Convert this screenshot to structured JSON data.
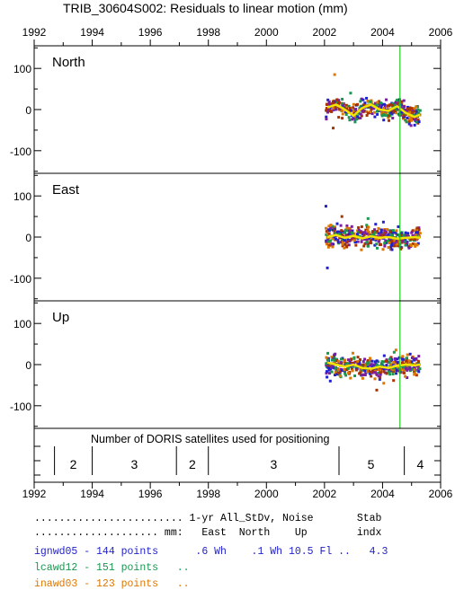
{
  "chart_data": {
    "type": "scatter",
    "title": "TRIB_30604S002: Residuals to linear motion (mm)",
    "x_ticks": [
      1992,
      1994,
      1996,
      1998,
      2000,
      2002,
      2004,
      2006
    ],
    "xlim": [
      1992,
      2006
    ],
    "vertical_line_x": 2004.6,
    "panels": [
      {
        "label": "North",
        "ylim": [
          -155,
          155
        ],
        "y_ticks": [
          100,
          0,
          -100
        ],
        "y_tick_labels": [
          "100",
          "0",
          "-100"
        ],
        "trend": [
          [
            2002.1,
            5
          ],
          [
            2002.4,
            12
          ],
          [
            2002.7,
            0
          ],
          [
            2003.0,
            -15
          ],
          [
            2003.3,
            4
          ],
          [
            2003.6,
            12
          ],
          [
            2003.9,
            0
          ],
          [
            2004.2,
            -3
          ],
          [
            2004.5,
            8
          ],
          [
            2004.8,
            -8
          ],
          [
            2005.1,
            -18
          ],
          [
            2005.3,
            -12
          ]
        ],
        "outliers": [
          [
            2002.35,
            85,
            "#dd7700"
          ],
          [
            2002.3,
            -45,
            "#aa3300"
          ],
          [
            2002.9,
            40,
            "#1a9850"
          ]
        ]
      },
      {
        "label": "East",
        "ylim": [
          -155,
          155
        ],
        "y_ticks": [
          100,
          0,
          -100
        ],
        "y_tick_labels": [
          "100",
          "0",
          "-100"
        ],
        "trend": [
          [
            2002.1,
            0
          ],
          [
            2002.4,
            5
          ],
          [
            2002.7,
            -2
          ],
          [
            2003.0,
            3
          ],
          [
            2003.3,
            -3
          ],
          [
            2003.6,
            2
          ],
          [
            2003.9,
            -2
          ],
          [
            2004.2,
            0
          ],
          [
            2004.5,
            -4
          ],
          [
            2004.8,
            -2
          ],
          [
            2005.1,
            0
          ],
          [
            2005.3,
            -2
          ]
        ],
        "outliers": [
          [
            2002.05,
            75,
            "#2222cc"
          ],
          [
            2002.1,
            -75,
            "#2222cc"
          ],
          [
            2002.6,
            50,
            "#aa3300"
          ],
          [
            2003.5,
            45,
            "#1a9850"
          ]
        ]
      },
      {
        "label": "Up",
        "ylim": [
          -155,
          155
        ],
        "y_ticks": [
          100,
          0,
          -100
        ],
        "y_tick_labels": [
          "100",
          "0",
          "-100"
        ],
        "trend": [
          [
            2002.1,
            5
          ],
          [
            2002.4,
            0
          ],
          [
            2002.7,
            -5
          ],
          [
            2003.0,
            0
          ],
          [
            2003.3,
            -8
          ],
          [
            2003.6,
            -10
          ],
          [
            2003.9,
            -5
          ],
          [
            2004.2,
            -8
          ],
          [
            2004.5,
            -3
          ],
          [
            2004.8,
            0
          ],
          [
            2005.1,
            -2
          ],
          [
            2005.3,
            0
          ]
        ],
        "outliers": [
          [
            2003.8,
            -62,
            "#aa3300"
          ],
          [
            2002.2,
            -40,
            "#2222cc"
          ],
          [
            2004.4,
            30,
            "#1a9850"
          ]
        ]
      }
    ],
    "series": [
      {
        "name": "ignwd05",
        "color": "#2222cc",
        "points": 144
      },
      {
        "name": "lcawd12",
        "color": "#1a9850",
        "points": 151
      },
      {
        "name": "inawd03",
        "color": "#dd7700",
        "points": 123
      }
    ],
    "secondary_colors": [
      "#7b1fa2",
      "#aa3300"
    ],
    "trend_color": "#f2e600",
    "satellites": {
      "label": "Number of DORIS satellites used for positioning",
      "boundaries": [
        1992.7,
        1994.0,
        1996.9,
        1998.0,
        2002.5,
        2004.75
      ],
      "segments": [
        {
          "x": 1993.35,
          "count": "2"
        },
        {
          "x": 1995.45,
          "count": "3"
        },
        {
          "x": 1997.45,
          "count": "2"
        },
        {
          "x": 2000.25,
          "count": "3"
        },
        {
          "x": 2003.6,
          "count": "5"
        },
        {
          "x": 2005.3,
          "count": "4"
        }
      ]
    }
  },
  "table": {
    "header1": "........................ 1-yr All_StDv, Noise       Stab",
    "header2": ".................... mm:   East  North    Up        indx",
    "rows": [
      {
        "text": "ignwd05 - 144 points      .6 Wh    .1 Wh 10.5 Fl ..   4.3",
        "color": "#2222cc"
      },
      {
        "text": "lcawd12 - 151 points   ..",
        "color": "#1a9850"
      },
      {
        "text": "inawd03 - 123 points   ..",
        "color": "#dd7700"
      }
    ]
  }
}
